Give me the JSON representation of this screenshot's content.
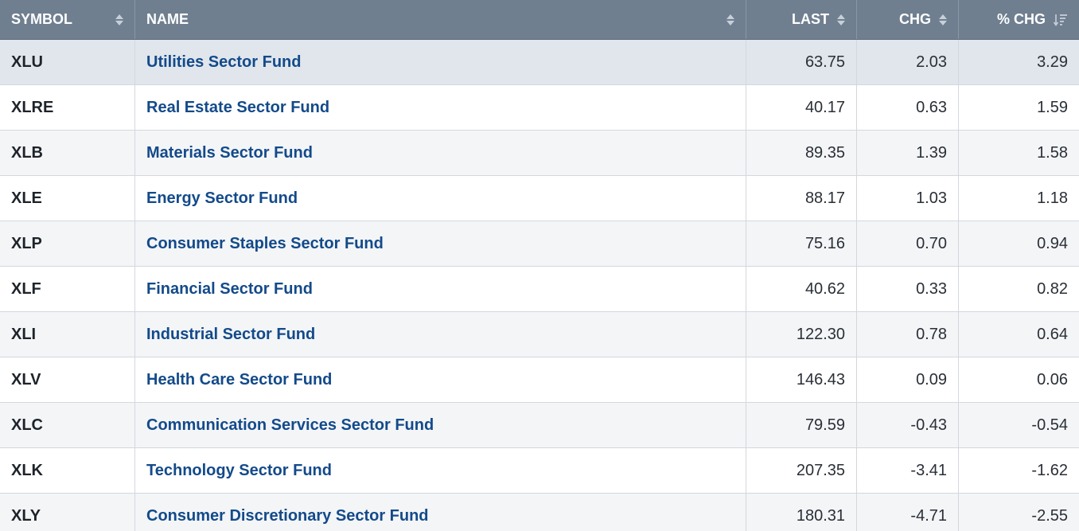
{
  "header": {
    "symbol": "SYMBOL",
    "name": "NAME",
    "last": "LAST",
    "chg": "CHG",
    "pct_chg": "% CHG",
    "sorted_column": "pct_chg",
    "sort_direction": "descending"
  },
  "rows": [
    {
      "symbol": "XLU",
      "name": "Utilities Sector Fund",
      "last": "63.75",
      "chg": "2.03",
      "pct_chg": "3.29"
    },
    {
      "symbol": "XLRE",
      "name": "Real Estate Sector Fund",
      "last": "40.17",
      "chg": "0.63",
      "pct_chg": "1.59"
    },
    {
      "symbol": "XLB",
      "name": "Materials Sector Fund",
      "last": "89.35",
      "chg": "1.39",
      "pct_chg": "1.58"
    },
    {
      "symbol": "XLE",
      "name": "Energy Sector Fund",
      "last": "88.17",
      "chg": "1.03",
      "pct_chg": "1.18"
    },
    {
      "symbol": "XLP",
      "name": "Consumer Staples Sector Fund",
      "last": "75.16",
      "chg": "0.70",
      "pct_chg": "0.94"
    },
    {
      "symbol": "XLF",
      "name": "Financial Sector Fund",
      "last": "40.62",
      "chg": "0.33",
      "pct_chg": "0.82"
    },
    {
      "symbol": "XLI",
      "name": "Industrial Sector Fund",
      "last": "122.30",
      "chg": "0.78",
      "pct_chg": "0.64"
    },
    {
      "symbol": "XLV",
      "name": "Health Care Sector Fund",
      "last": "146.43",
      "chg": "0.09",
      "pct_chg": "0.06"
    },
    {
      "symbol": "XLC",
      "name": "Communication Services Sector Fund",
      "last": "79.59",
      "chg": "-0.43",
      "pct_chg": "-0.54"
    },
    {
      "symbol": "XLK",
      "name": "Technology Sector Fund",
      "last": "207.35",
      "chg": "-3.41",
      "pct_chg": "-1.62"
    },
    {
      "symbol": "XLY",
      "name": "Consumer Discretionary Sector Fund",
      "last": "180.31",
      "chg": "-4.71",
      "pct_chg": "-2.55"
    }
  ],
  "colors": {
    "header_bg": "#6f7f90",
    "link": "#134a8a",
    "highlight_row": "#e0e6ec"
  },
  "icons": {
    "sortable": "sort-arrows-icon",
    "sorted_desc": "sort-descending-icon"
  }
}
